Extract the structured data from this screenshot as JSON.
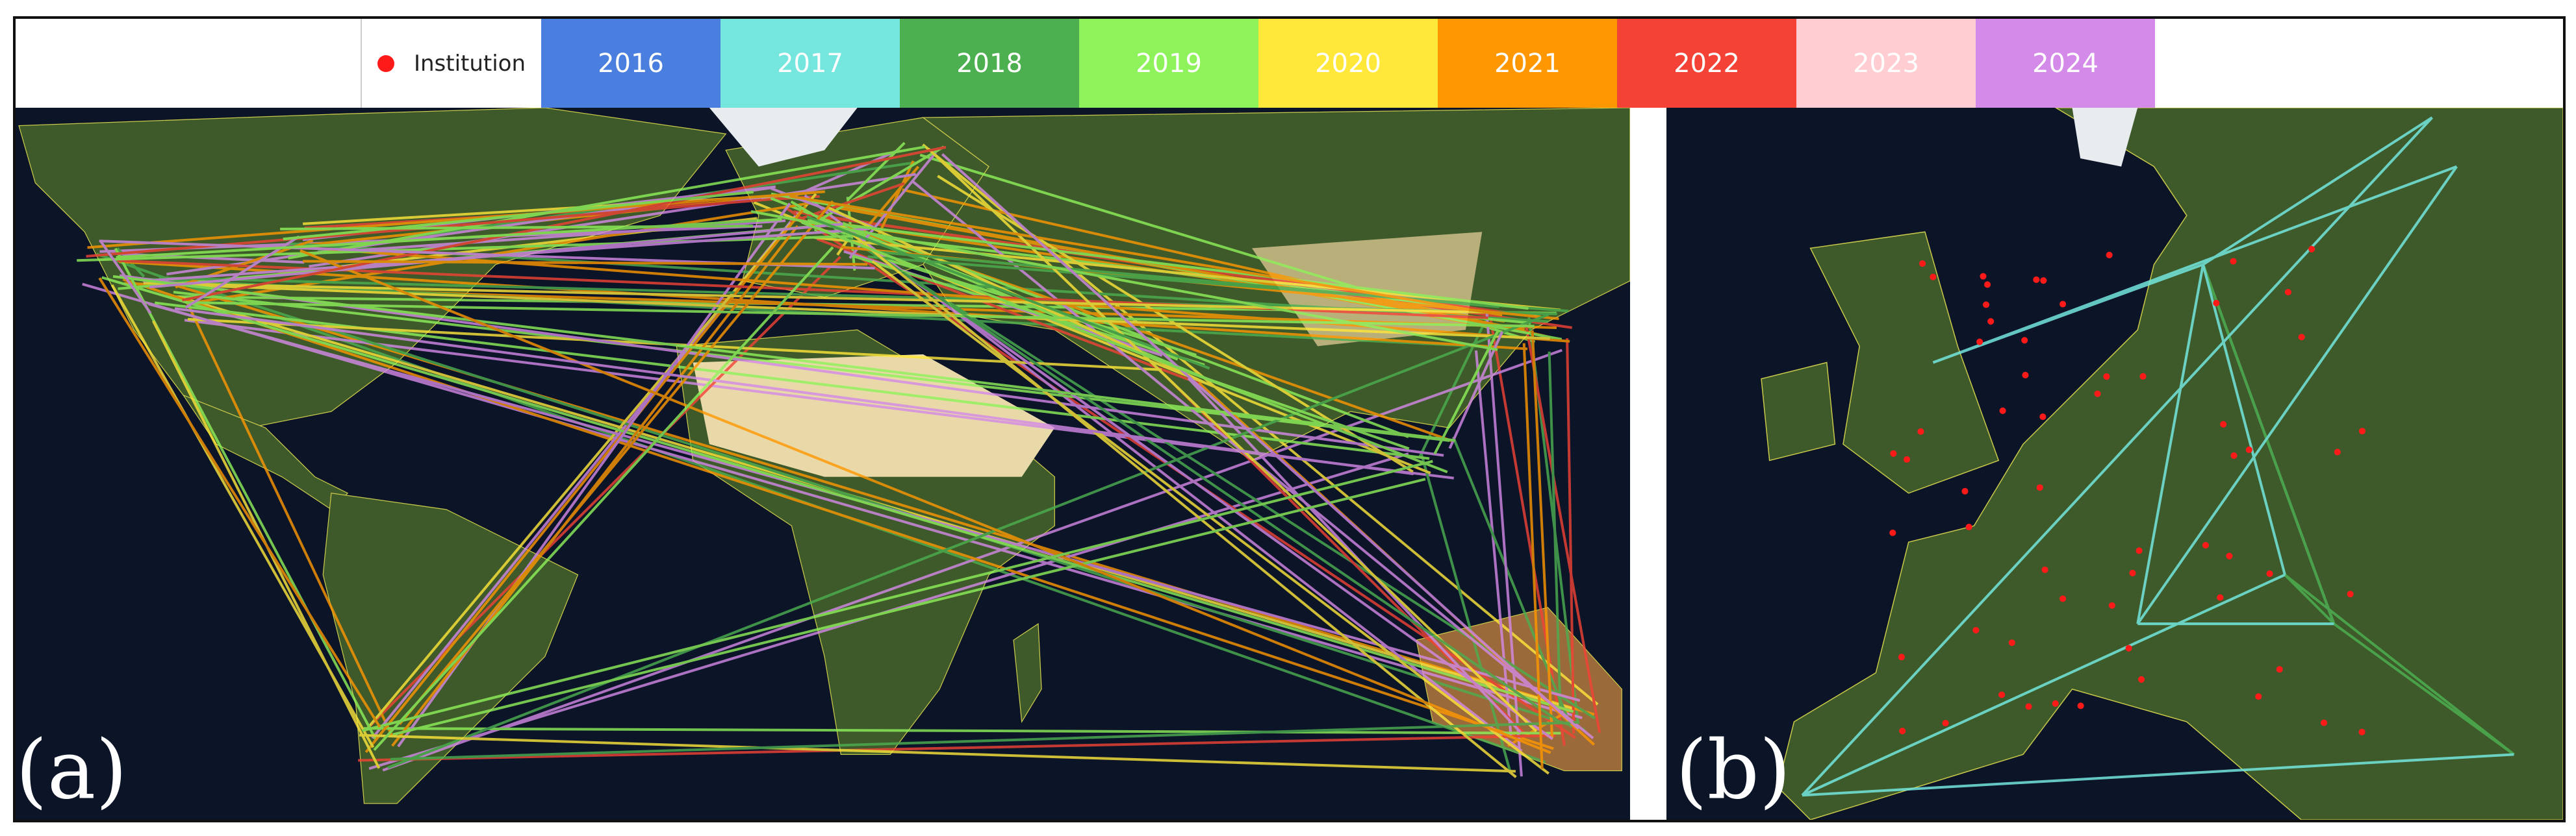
{
  "legend": {
    "institution": "Institution",
    "institution_color": "#ff1a1a",
    "years": [
      {
        "label": "2016",
        "color": "#4a7fe0"
      },
      {
        "label": "2017",
        "color": "#74e6de"
      },
      {
        "label": "2018",
        "color": "#4caf50"
      },
      {
        "label": "2019",
        "color": "#8ef25a"
      },
      {
        "label": "2020",
        "color": "#ffe83a"
      },
      {
        "label": "2021",
        "color": "#ff9800"
      },
      {
        "label": "2022",
        "color": "#f44336"
      },
      {
        "label": "2023",
        "color": "#ffcdd2"
      },
      {
        "label": "2024",
        "color": "#d48ae8"
      }
    ]
  },
  "panels": [
    {
      "label": "(a)"
    },
    {
      "label": "(b)"
    }
  ]
}
